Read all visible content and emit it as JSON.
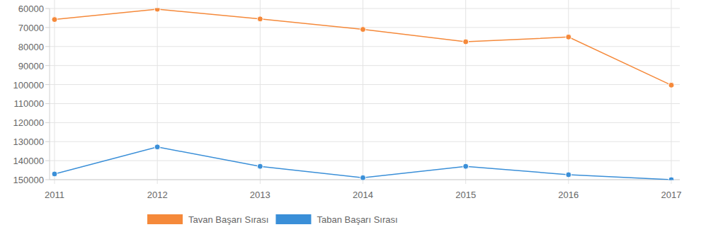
{
  "chart_data": {
    "type": "line",
    "categories": [
      "2011",
      "2012",
      "2013",
      "2014",
      "2015",
      "2016",
      "2017"
    ],
    "series": [
      {
        "name": "Tavan Başarı Sırası",
        "color": "#f5893a",
        "marker": "circle",
        "values": [
          65800,
          60400,
          65500,
          71000,
          77500,
          75000,
          100300
        ]
      },
      {
        "name": "Taban Başarı Sırası",
        "color": "#3a8fd8",
        "marker": "circle",
        "values": [
          147000,
          132800,
          143000,
          149000,
          143000,
          147400,
          150000
        ]
      }
    ],
    "ylim": [
      150000,
      60000
    ],
    "yticks": [
      60000,
      70000,
      80000,
      90000,
      100000,
      110000,
      120000,
      130000,
      140000,
      150000
    ],
    "grid": true,
    "legend": "bottom"
  }
}
